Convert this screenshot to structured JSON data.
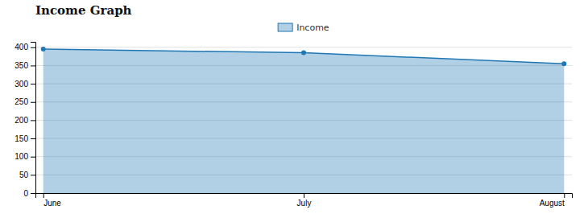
{
  "chart_data": {
    "type": "area",
    "title": "Income Graph",
    "categories": [
      "June",
      "July",
      "August"
    ],
    "series": [
      {
        "name": "Income",
        "values": [
          395,
          385,
          355
        ]
      }
    ],
    "ylim": [
      0,
      415
    ],
    "yticks": [
      0,
      50,
      100,
      150,
      200,
      250,
      300,
      350,
      400
    ],
    "grid": true,
    "legend": "top"
  }
}
